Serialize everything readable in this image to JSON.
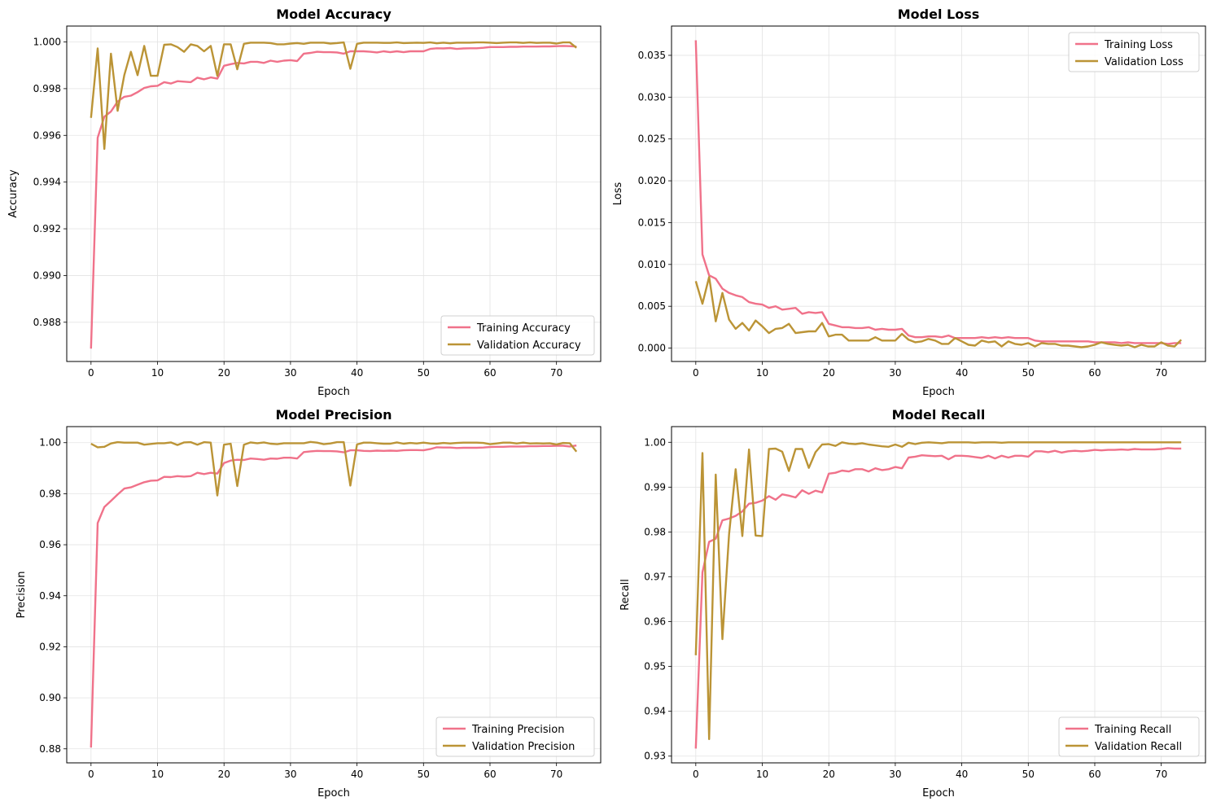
{
  "colors": {
    "training": "#f0728a",
    "validation": "#bb9436"
  },
  "chart_data": [
    {
      "type": "line",
      "title": "Model Accuracy",
      "xlabel": "Epoch",
      "ylabel": "Accuracy",
      "xlim": [
        -3.65,
        76.65
      ],
      "ylim": [
        0.98632,
        1.00068
      ],
      "xticks": [
        0,
        10,
        20,
        30,
        40,
        50,
        60,
        70
      ],
      "yticks": [
        0.988,
        0.99,
        0.992,
        0.994,
        0.996,
        0.998,
        1.0
      ],
      "ytick_labels": [
        "0.988",
        "0.990",
        "0.992",
        "0.994",
        "0.996",
        "0.998",
        "1.000"
      ],
      "grid": true,
      "legend": "lower-right",
      "x": [
        0,
        1,
        2,
        3,
        4,
        5,
        6,
        7,
        8,
        9,
        10,
        11,
        12,
        13,
        14,
        15,
        16,
        17,
        18,
        19,
        20,
        21,
        22,
        23,
        24,
        25,
        26,
        27,
        28,
        29,
        30,
        31,
        32,
        33,
        34,
        35,
        36,
        37,
        38,
        39,
        40,
        41,
        42,
        43,
        44,
        45,
        46,
        47,
        48,
        49,
        50,
        51,
        52,
        53,
        54,
        55,
        56,
        57,
        58,
        59,
        60,
        61,
        62,
        63,
        64,
        65,
        66,
        67,
        68,
        69,
        70,
        71,
        72,
        73
      ],
      "series": [
        {
          "name": "Training Accuracy",
          "values": [
            0.98687,
            0.9959,
            0.9968,
            0.99702,
            0.99745,
            0.99765,
            0.9977,
            0.99785,
            0.99803,
            0.9981,
            0.99812,
            0.99828,
            0.99822,
            0.99832,
            0.9983,
            0.99828,
            0.99847,
            0.9984,
            0.99848,
            0.99843,
            0.99898,
            0.99905,
            0.9991,
            0.99908,
            0.99915,
            0.99915,
            0.9991,
            0.9992,
            0.99915,
            0.9992,
            0.99922,
            0.99918,
            0.9995,
            0.99953,
            0.99958,
            0.99956,
            0.99956,
            0.99955,
            0.9995,
            0.9996,
            0.9996,
            0.9996,
            0.99958,
            0.99955,
            0.9996,
            0.99956,
            0.9996,
            0.99956,
            0.9996,
            0.9996,
            0.9996,
            0.9997,
            0.99973,
            0.99972,
            0.99974,
            0.9997,
            0.99972,
            0.99973,
            0.99973,
            0.99975,
            0.99978,
            0.99978,
            0.99978,
            0.99979,
            0.99979,
            0.9998,
            0.9998,
            0.9998,
            0.99981,
            0.99981,
            0.99982,
            0.99983,
            0.99982,
            0.9998
          ]
        },
        {
          "name": "Validation Accuracy",
          "values": [
            0.99675,
            0.99972,
            0.99542,
            0.9995,
            0.99705,
            0.99858,
            0.99958,
            0.99858,
            0.99983,
            0.99855,
            0.99855,
            0.99988,
            0.9999,
            0.99978,
            0.99958,
            0.9999,
            0.99983,
            0.9996,
            0.99983,
            0.99855,
            0.9999,
            0.9999,
            0.99883,
            0.99992,
            0.99997,
            0.99997,
            0.99997,
            0.99995,
            0.9999,
            0.9999,
            0.99993,
            0.99995,
            0.99992,
            0.99997,
            0.99997,
            0.99997,
            0.99993,
            0.99995,
            0.99998,
            0.99885,
            0.99992,
            0.99997,
            0.99997,
            0.99997,
            0.99996,
            0.99996,
            0.99998,
            0.99995,
            0.99996,
            0.99997,
            0.99996,
            0.99998,
            0.99994,
            0.99997,
            0.99994,
            0.99997,
            0.99997,
            0.99997,
            0.99998,
            0.99998,
            0.99997,
            0.99995,
            0.99997,
            0.99998,
            0.99998,
            0.99996,
            0.99998,
            0.99996,
            0.99997,
            0.99997,
            0.99993,
            0.99998,
            0.99998,
            0.99975
          ]
        }
      ]
    },
    {
      "type": "line",
      "title": "Model Loss",
      "xlabel": "Epoch",
      "ylabel": "Loss",
      "xlim": [
        -3.65,
        76.65
      ],
      "ylim": [
        -0.0016,
        0.0385
      ],
      "xticks": [
        0,
        10,
        20,
        30,
        40,
        50,
        60,
        70
      ],
      "yticks": [
        0.0,
        0.005,
        0.01,
        0.015,
        0.02,
        0.025,
        0.03,
        0.035
      ],
      "ytick_labels": [
        "0.000",
        "0.005",
        "0.010",
        "0.015",
        "0.020",
        "0.025",
        "0.030",
        "0.035"
      ],
      "grid": true,
      "legend": "upper-right",
      "x": [
        0,
        1,
        2,
        3,
        4,
        5,
        6,
        7,
        8,
        9,
        10,
        11,
        12,
        13,
        14,
        15,
        16,
        17,
        18,
        19,
        20,
        21,
        22,
        23,
        24,
        25,
        26,
        27,
        28,
        29,
        30,
        31,
        32,
        33,
        34,
        35,
        36,
        37,
        38,
        39,
        40,
        41,
        42,
        43,
        44,
        45,
        46,
        47,
        48,
        49,
        50,
        51,
        52,
        53,
        54,
        55,
        56,
        57,
        58,
        59,
        60,
        61,
        62,
        63,
        64,
        65,
        66,
        67,
        68,
        69,
        70,
        71,
        72,
        73
      ],
      "series": [
        {
          "name": "Training Loss",
          "values": [
            0.0368,
            0.0112,
            0.0087,
            0.0083,
            0.0071,
            0.0066,
            0.0063,
            0.0061,
            0.0055,
            0.0053,
            0.0052,
            0.0048,
            0.005,
            0.0046,
            0.0047,
            0.0048,
            0.0041,
            0.0043,
            0.0042,
            0.0043,
            0.0029,
            0.0027,
            0.0025,
            0.0025,
            0.0024,
            0.0024,
            0.0025,
            0.0022,
            0.0023,
            0.0022,
            0.0022,
            0.0023,
            0.0015,
            0.0013,
            0.0013,
            0.0014,
            0.0014,
            0.0013,
            0.0015,
            0.0012,
            0.0012,
            0.0012,
            0.0012,
            0.0013,
            0.0012,
            0.0013,
            0.0012,
            0.0013,
            0.0012,
            0.0012,
            0.0012,
            0.0009,
            0.0008,
            0.0008,
            0.0008,
            0.0008,
            0.0008,
            0.0008,
            0.0008,
            0.0008,
            0.0007,
            0.0007,
            0.0007,
            0.0007,
            0.0006,
            0.0007,
            0.0006,
            0.0006,
            0.0006,
            0.0006,
            0.0006,
            0.0005,
            0.0006,
            0.0006
          ]
        },
        {
          "name": "Validation Loss",
          "values": [
            0.008,
            0.0053,
            0.0085,
            0.0032,
            0.0066,
            0.0034,
            0.0023,
            0.003,
            0.0021,
            0.0033,
            0.0026,
            0.0018,
            0.0023,
            0.0024,
            0.0029,
            0.0018,
            0.0019,
            0.002,
            0.002,
            0.003,
            0.0014,
            0.0016,
            0.0016,
            0.0009,
            0.0009,
            0.0009,
            0.0009,
            0.0013,
            0.0009,
            0.0009,
            0.0009,
            0.0017,
            0.001,
            0.0007,
            0.0008,
            0.0011,
            0.0009,
            0.0005,
            0.0005,
            0.0012,
            0.0008,
            0.0004,
            0.0003,
            0.0009,
            0.0007,
            0.0008,
            0.0002,
            0.0008,
            0.0005,
            0.0004,
            0.0006,
            0.0002,
            0.0006,
            0.0005,
            0.0005,
            0.0003,
            0.0003,
            0.0002,
            0.0001,
            0.0002,
            0.0004,
            0.0007,
            0.0005,
            0.0004,
            0.0003,
            0.0004,
            0.0001,
            0.0004,
            0.0002,
            0.0002,
            0.0007,
            0.0003,
            0.0002,
            0.001
          ]
        }
      ]
    },
    {
      "type": "line",
      "title": "Model Precision",
      "xlabel": "Epoch",
      "ylabel": "Precision",
      "xlim": [
        -3.65,
        76.65
      ],
      "ylim": [
        0.8745,
        1.0063
      ],
      "xticks": [
        0,
        10,
        20,
        30,
        40,
        50,
        60,
        70
      ],
      "yticks": [
        0.88,
        0.9,
        0.92,
        0.94,
        0.96,
        0.98,
        1.0
      ],
      "ytick_labels": [
        "0.88",
        "0.90",
        "0.92",
        "0.94",
        "0.96",
        "0.98",
        "1.00"
      ],
      "grid": true,
      "legend": "lower-right",
      "x": [
        0,
        1,
        2,
        3,
        4,
        5,
        6,
        7,
        8,
        9,
        10,
        11,
        12,
        13,
        14,
        15,
        16,
        17,
        18,
        19,
        20,
        21,
        22,
        23,
        24,
        25,
        26,
        27,
        28,
        29,
        30,
        31,
        32,
        33,
        34,
        35,
        36,
        37,
        38,
        39,
        40,
        41,
        42,
        43,
        44,
        45,
        46,
        47,
        48,
        49,
        50,
        51,
        52,
        53,
        54,
        55,
        56,
        57,
        58,
        59,
        60,
        61,
        62,
        63,
        64,
        65,
        66,
        67,
        68,
        69,
        70,
        71,
        72,
        73
      ],
      "series": [
        {
          "name": "Training Precision",
          "values": [
            0.8805,
            0.9685,
            0.9748,
            0.9772,
            0.9797,
            0.982,
            0.9825,
            0.9835,
            0.9845,
            0.9851,
            0.9852,
            0.9866,
            0.9865,
            0.9869,
            0.9867,
            0.9869,
            0.9882,
            0.9877,
            0.9882,
            0.9879,
            0.992,
            0.993,
            0.9933,
            0.9932,
            0.9938,
            0.9936,
            0.9933,
            0.9938,
            0.9937,
            0.9941,
            0.9941,
            0.9938,
            0.9963,
            0.9966,
            0.9968,
            0.9967,
            0.9967,
            0.9966,
            0.9962,
            0.997,
            0.997,
            0.9968,
            0.9967,
            0.9969,
            0.9968,
            0.9969,
            0.9968,
            0.997,
            0.9971,
            0.9971,
            0.997,
            0.9975,
            0.9982,
            0.9981,
            0.9981,
            0.9979,
            0.998,
            0.998,
            0.998,
            0.9981,
            0.9983,
            0.9984,
            0.9984,
            0.9985,
            0.9985,
            0.9985,
            0.9986,
            0.9986,
            0.9987,
            0.9987,
            0.9988,
            0.9988,
            0.9985,
            0.9989
          ]
        },
        {
          "name": "Validation Precision",
          "values": [
            0.9996,
            0.9982,
            0.9984,
            0.9997,
            1.0002,
            1.0,
            1.0,
            1.0,
            0.9992,
            0.9995,
            0.9998,
            0.9998,
            1.0001,
            0.9991,
            1.0001,
            1.0002,
            0.9992,
            1.0002,
            1.0,
            0.9793,
            0.9992,
            0.9996,
            0.983,
            0.9992,
            1.0001,
            0.9998,
            1.0001,
            0.9996,
            0.9994,
            0.9998,
            0.9998,
            0.9998,
            0.9998,
            1.0003,
            1.0,
            0.9994,
            0.9997,
            1.0002,
            1.0002,
            0.9832,
            0.9993,
            1.0,
            1.0,
            0.9998,
            0.9996,
            0.9996,
            1.0001,
            0.9996,
            0.9999,
            0.9997,
            1.0,
            0.9997,
            0.9996,
            0.9999,
            0.9997,
            0.9999,
            1.0,
            1.0,
            1.0,
            0.9999,
            0.9994,
            0.9997,
            1.0,
            1.0,
            0.9997,
            1.0,
            0.9997,
            0.9998,
            0.9997,
            0.9998,
            0.9993,
            0.9999,
            0.9998,
            0.9965
          ]
        }
      ]
    },
    {
      "type": "line",
      "title": "Model Recall",
      "xlabel": "Epoch",
      "ylabel": "Recall",
      "xlim": [
        -3.65,
        76.65
      ],
      "ylim": [
        0.9285,
        1.0035
      ],
      "xticks": [
        0,
        10,
        20,
        30,
        40,
        50,
        60,
        70
      ],
      "yticks": [
        0.93,
        0.94,
        0.95,
        0.96,
        0.97,
        0.98,
        0.99,
        1.0
      ],
      "ytick_labels": [
        "0.93",
        "0.94",
        "0.95",
        "0.96",
        "0.97",
        "0.98",
        "0.99",
        "1.00"
      ],
      "grid": true,
      "legend": "lower-right",
      "x": [
        0,
        1,
        2,
        3,
        4,
        5,
        6,
        7,
        8,
        9,
        10,
        11,
        12,
        13,
        14,
        15,
        16,
        17,
        18,
        19,
        20,
        21,
        22,
        23,
        24,
        25,
        26,
        27,
        28,
        29,
        30,
        31,
        32,
        33,
        34,
        35,
        36,
        37,
        38,
        39,
        40,
        41,
        42,
        43,
        44,
        45,
        46,
        47,
        48,
        49,
        50,
        51,
        52,
        53,
        54,
        55,
        56,
        57,
        58,
        59,
        60,
        61,
        62,
        63,
        64,
        65,
        66,
        67,
        68,
        69,
        70,
        71,
        72,
        73
      ],
      "series": [
        {
          "name": "Training Recall",
          "values": [
            0.9317,
            0.971,
            0.9778,
            0.9785,
            0.9826,
            0.983,
            0.9836,
            0.9846,
            0.9863,
            0.9865,
            0.987,
            0.988,
            0.9872,
            0.9884,
            0.9881,
            0.9877,
            0.9893,
            0.9885,
            0.9892,
            0.9888,
            0.993,
            0.9932,
            0.9937,
            0.9935,
            0.994,
            0.994,
            0.9935,
            0.9942,
            0.9938,
            0.994,
            0.9945,
            0.9942,
            0.9966,
            0.9968,
            0.9971,
            0.997,
            0.9969,
            0.997,
            0.9962,
            0.997,
            0.997,
            0.9969,
            0.9967,
            0.9965,
            0.997,
            0.9964,
            0.997,
            0.9966,
            0.997,
            0.997,
            0.9968,
            0.998,
            0.998,
            0.9978,
            0.9981,
            0.9977,
            0.998,
            0.9981,
            0.998,
            0.9981,
            0.9983,
            0.9982,
            0.9983,
            0.9983,
            0.9984,
            0.9983,
            0.9985,
            0.9984,
            0.9984,
            0.9984,
            0.9985,
            0.9987,
            0.9986,
            0.9986
          ]
        },
        {
          "name": "Validation Recall",
          "values": [
            0.9525,
            0.9976,
            0.9338,
            0.9928,
            0.9561,
            0.9795,
            0.994,
            0.9791,
            0.9984,
            0.9792,
            0.9791,
            0.9985,
            0.9986,
            0.9979,
            0.9936,
            0.9985,
            0.9985,
            0.9943,
            0.9978,
            0.9995,
            0.9996,
            0.9992,
            1.0,
            0.9997,
            0.9996,
            0.9998,
            0.9995,
            0.9993,
            0.9991,
            0.999,
            0.9995,
            0.999,
            0.9999,
            0.9996,
            0.9999,
            1.0,
            0.9999,
            0.9998,
            1.0,
            1.0,
            1.0,
            1.0,
            0.9999,
            1.0,
            1.0,
            1.0,
            0.9999,
            1.0,
            1.0,
            1.0,
            1.0,
            1.0,
            1.0,
            1.0,
            1.0,
            1.0,
            1.0,
            1.0,
            1.0,
            1.0,
            1.0,
            1.0,
            1.0,
            1.0,
            1.0,
            1.0,
            1.0,
            1.0,
            1.0,
            1.0,
            1.0,
            1.0,
            1.0,
            1.0
          ]
        }
      ]
    }
  ]
}
